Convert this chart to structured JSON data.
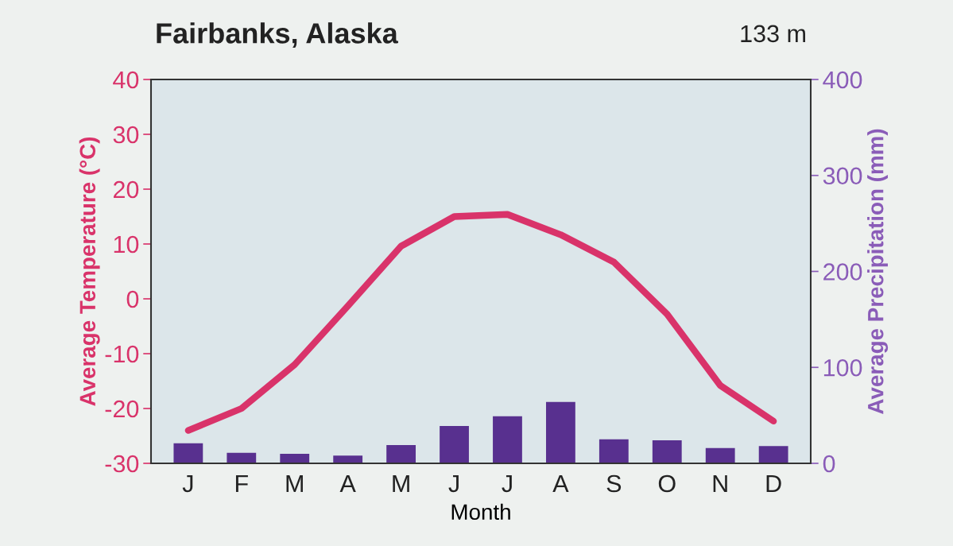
{
  "chart_data": {
    "type": "bar",
    "title": "Fairbanks, Alaska",
    "annotations": [
      "133 m"
    ],
    "xlabel": "Month",
    "ylabel": "Average Temperature (°C)",
    "y2label": "Average Precipitation (mm)",
    "categories": [
      "J",
      "F",
      "M",
      "A",
      "M",
      "J",
      "J",
      "A",
      "S",
      "O",
      "N",
      "D"
    ],
    "series": [
      {
        "type": "line",
        "color": "#d9336a",
        "values": [
          -24,
          -20,
          -12,
          -1.3,
          9.6,
          15,
          15.4,
          11.7,
          6.7,
          -2.8,
          -15.8,
          -22.3
        ]
      },
      {
        "axis": "y2",
        "color": "#58308f",
        "values": [
          21,
          11,
          10,
          8,
          19,
          39,
          49,
          64,
          25,
          24,
          16,
          18
        ]
      }
    ],
    "ylim": [
      -30,
      40
    ],
    "yticks": [
      -30,
      -20,
      -10,
      0,
      10,
      20,
      30,
      40
    ],
    "y2lim": [
      0,
      400
    ],
    "y2ticks": [
      0,
      100,
      200,
      300,
      400
    ],
    "grid": false,
    "legend": false
  }
}
